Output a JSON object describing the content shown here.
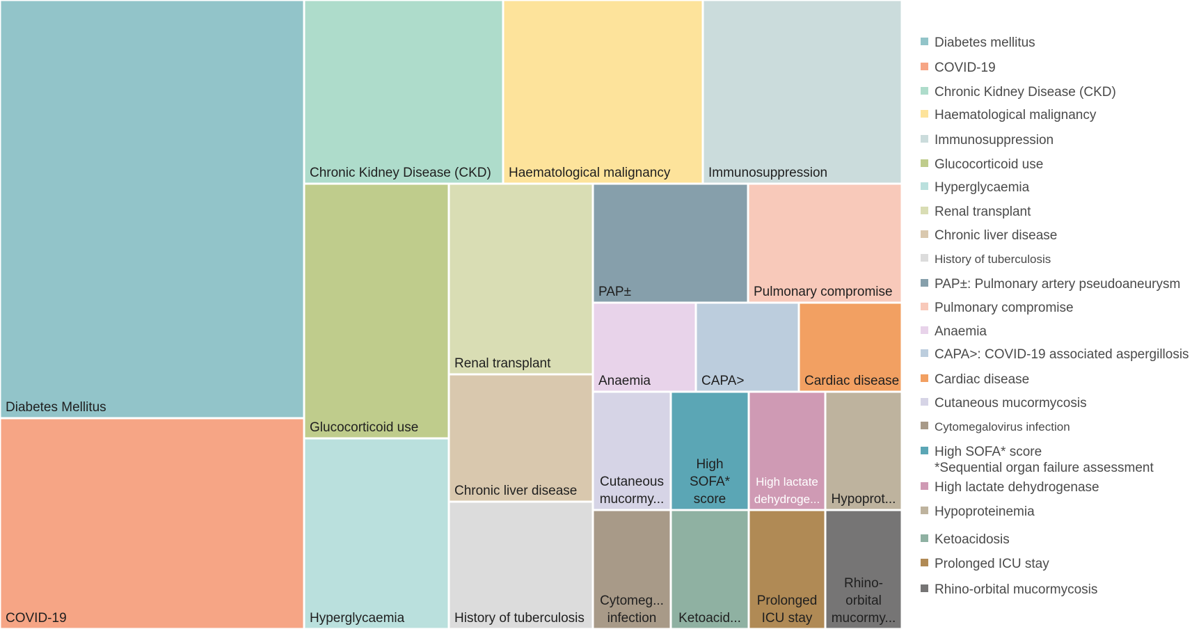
{
  "chart_data": {
    "type": "treemap",
    "colors": {
      "diabetes": "#92C4C9",
      "covid": "#F6A585",
      "ckd": "#AEDCCB",
      "haem": "#FDE39B",
      "immuno": "#CBDCDC",
      "gluco": "#BFCC8C",
      "hyper": "#BAE0DD",
      "renal": "#D9DDB4",
      "liver": "#D9C8AE",
      "tb": "#DCDCDC",
      "pap": "#869FAB",
      "pulm": "#F8C9BA",
      "anaemia": "#E8D3EA",
      "capa": "#BCCDDD",
      "cardiac": "#F2A062",
      "cutaneous": "#D6D4E6",
      "sofa": "#5BA6B5",
      "ldh": "#CF9AB4",
      "hypoprot": "#BEB39E",
      "cmv": "#A89A88",
      "keto": "#8FB1A2",
      "icu": "#B08A55",
      "rhino": "#767575"
    },
    "tiles": [
      {
        "key": "diabetes",
        "label_lines": [
          "Diabetes Mellitus"
        ]
      },
      {
        "key": "covid",
        "label_lines": [
          "COVID-19"
        ]
      },
      {
        "key": "ckd",
        "label_lines": [
          "Chronic Kidney Disease (CKD)"
        ]
      },
      {
        "key": "haem",
        "label_lines": [
          "Haematological malignancy"
        ]
      },
      {
        "key": "immuno",
        "label_lines": [
          "Immunosuppression"
        ]
      },
      {
        "key": "gluco",
        "label_lines": [
          "Glucocorticoid use"
        ]
      },
      {
        "key": "hyper",
        "label_lines": [
          "Hyperglycaemia"
        ]
      },
      {
        "key": "renal",
        "label_lines": [
          "Renal transplant"
        ]
      },
      {
        "key": "liver",
        "label_lines": [
          "Chronic liver disease"
        ]
      },
      {
        "key": "tb",
        "label_lines": [
          "History of tuberculosis"
        ]
      },
      {
        "key": "pap",
        "label_lines": [
          "PAP±"
        ]
      },
      {
        "key": "pulm",
        "label_lines": [
          "Pulmonary compromise"
        ]
      },
      {
        "key": "anaemia",
        "label_lines": [
          "Anaemia"
        ]
      },
      {
        "key": "capa",
        "label_lines": [
          "CAPA˃"
        ]
      },
      {
        "key": "cardiac",
        "label_lines": [
          "Cardiac disease"
        ]
      },
      {
        "key": "cutaneous",
        "label_lines": [
          "Cutaneous",
          "mucormy..."
        ]
      },
      {
        "key": "sofa",
        "label_lines": [
          "High",
          "SOFA*",
          "score"
        ]
      },
      {
        "key": "ldh",
        "label_lines": [
          "High lactate",
          "dehydroge..."
        ]
      },
      {
        "key": "hypoprot",
        "label_lines": [
          "Hypoprot..."
        ]
      },
      {
        "key": "cmv",
        "label_lines": [
          "Cytomeg...",
          "infection"
        ]
      },
      {
        "key": "keto",
        "label_lines": [
          "Ketoacid..."
        ]
      },
      {
        "key": "icu",
        "label_lines": [
          "Prolonged",
          "ICU stay"
        ]
      },
      {
        "key": "rhino",
        "label_lines": [
          "Rhino-",
          "orbital",
          "mucormy..."
        ]
      }
    ],
    "legend": [
      {
        "key": "diabetes",
        "lines": [
          "Diabetes mellitus"
        ]
      },
      {
        "key": "covid",
        "lines": [
          "COVID-19"
        ]
      },
      {
        "key": "ckd",
        "lines": [
          "Chronic Kidney Disease (CKD)"
        ]
      },
      {
        "key": "haem",
        "lines": [
          "Haematological malignancy"
        ]
      },
      {
        "key": "immuno",
        "lines": [
          "Immunosuppression"
        ]
      },
      {
        "key": "gluco",
        "lines": [
          "Glucocorticoid use"
        ]
      },
      {
        "key": "hyper",
        "lines": [
          "Hyperglycaemia"
        ]
      },
      {
        "key": "renal",
        "lines": [
          "Renal transplant"
        ]
      },
      {
        "key": "liver",
        "lines": [
          "Chronic liver disease"
        ]
      },
      {
        "key": "tb",
        "lines": [
          "History of tuberculosis"
        ]
      },
      {
        "key": "pap",
        "lines": [
          "PAP±: Pulmonary artery pseudoaneurysm"
        ]
      },
      {
        "key": "pulm",
        "lines": [
          "Pulmonary compromise"
        ]
      },
      {
        "key": "anaemia",
        "lines": [
          "Anaemia"
        ]
      },
      {
        "key": "capa",
        "lines": [
          "CAPA˃: COVID-19 associated aspergillosis"
        ]
      },
      {
        "key": "cardiac",
        "lines": [
          "Cardiac disease"
        ]
      },
      {
        "key": "cutaneous",
        "lines": [
          "Cutaneous mucormycosis"
        ]
      },
      {
        "key": "cmv",
        "lines": [
          "Cytomegalovirus infection"
        ]
      },
      {
        "key": "sofa",
        "lines": [
          "High SOFA* score",
          "*Sequential organ failure assessment"
        ]
      },
      {
        "key": "ldh",
        "lines": [
          "High lactate dehydrogenase"
        ]
      },
      {
        "key": "hypoprot",
        "lines": [
          "Hypoproteinemia"
        ]
      },
      {
        "key": "keto",
        "lines": [
          "Ketoacidosis"
        ]
      },
      {
        "key": "icu",
        "lines": [
          "Prolonged ICU stay"
        ]
      },
      {
        "key": "rhino",
        "lines": [
          "Rhino-orbital mucormycosis"
        ]
      }
    ]
  }
}
